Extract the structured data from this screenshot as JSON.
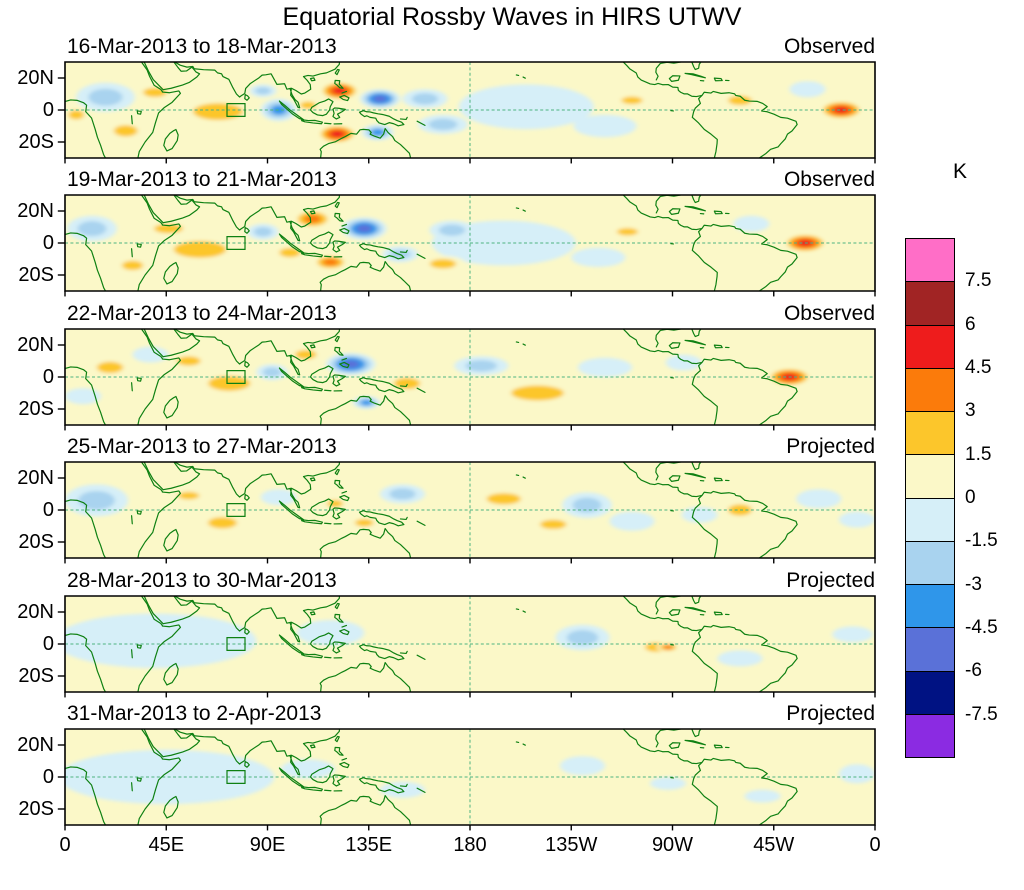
{
  "chart_data": {
    "type": "heatmap",
    "subtype": "filled_contour_longitude_latitude_maps",
    "title": "Equatorial Rossby Waves in HIRS UTWV",
    "contour_levels": [
      -7.5,
      -6,
      -4.5,
      -3,
      -1.5,
      0,
      1.5,
      3,
      4.5,
      6,
      7.5
    ],
    "x_tick_labels": [
      "0",
      "45E",
      "90E",
      "135E",
      "180",
      "135W",
      "90W",
      "45W",
      "0"
    ],
    "y_ticks": [
      {
        "label": "20N",
        "lat": 20
      },
      {
        "label": "0",
        "lat": 0
      },
      {
        "label": "20S",
        "lat": -20
      }
    ],
    "lon_range": [
      0,
      360
    ],
    "lat_range": [
      -30,
      30
    ],
    "colorbar": {
      "unit": "K",
      "tick_labels": [
        "7.5",
        "6",
        "4.5",
        "3",
        "1.5",
        "0",
        "-1.5",
        "-3",
        "-4.5",
        "-6",
        "-7.5"
      ],
      "colors_top_to_bottom": [
        "#FF6EC7",
        "#A12424",
        "#EE1C1C",
        "#FB7B0B",
        "#FCC62B",
        "#FBF8C8",
        "#D6EFF8",
        "#A9D3EF",
        "#2F96EA",
        "#5A71D8",
        "#001283",
        "#8B2BE2"
      ]
    },
    "target_box": {
      "lon_min": 72,
      "lon_max": 80,
      "lat_min": -4,
      "lat_max": 4
    },
    "style": {
      "base_fill": "#FBF8C8",
      "coast_color": "#0E8012",
      "grid_dash_color": "#4DB380",
      "frame_color": "#000000"
    },
    "anomaly_format": [
      "lon_deg_east",
      "lat_deg",
      "rx_deg",
      "ry_deg",
      "peak_K"
    ],
    "panels": [
      {
        "date_range": "16-Mar-2013 to 18-Mar-2013",
        "status": "Observed",
        "anomalies": [
          [
            18,
            8,
            13,
            9,
            -1.6
          ],
          [
            40,
            11,
            9,
            5,
            1.8
          ],
          [
            27,
            -13,
            9,
            6,
            1.8
          ],
          [
            5,
            -3,
            6,
            5,
            1.6
          ],
          [
            68,
            -1,
            19,
            9,
            2.3
          ],
          [
            95,
            0,
            8,
            7,
            -3.2
          ],
          [
            88,
            12,
            6,
            4,
            -1.6
          ],
          [
            122,
            12,
            9,
            6,
            5.2
          ],
          [
            140,
            7,
            9,
            6,
            -5.2
          ],
          [
            121,
            -15,
            9,
            6,
            4.7
          ],
          [
            139,
            -14,
            7,
            5,
            -3.1
          ],
          [
            108,
            3,
            6,
            4,
            1.8
          ],
          [
            160,
            7,
            10,
            6,
            -2.3
          ],
          [
            168,
            -9,
            11,
            6,
            -1.8
          ],
          [
            205,
            2,
            30,
            14,
            -1.2
          ],
          [
            252,
            6,
            8,
            4,
            1.7
          ],
          [
            240,
            -10,
            14,
            7,
            -1.3
          ],
          [
            300,
            6,
            9,
            5,
            1.6
          ],
          [
            330,
            13,
            8,
            5,
            -1.4
          ],
          [
            345,
            0,
            10,
            6,
            4.6
          ]
        ]
      },
      {
        "date_range": "19-Mar-2013 to 21-Mar-2013",
        "status": "Observed",
        "anomalies": [
          [
            12,
            9,
            11,
            8,
            -1.6
          ],
          [
            46,
            9,
            11,
            5,
            2.0
          ],
          [
            30,
            -14,
            8,
            5,
            1.7
          ],
          [
            60,
            -4,
            20,
            9,
            2.7
          ],
          [
            88,
            7,
            7,
            5,
            -2.4
          ],
          [
            110,
            15,
            9,
            6,
            3.7
          ],
          [
            133,
            9,
            10,
            7,
            -5.0
          ],
          [
            118,
            -12,
            8,
            5,
            4.3
          ],
          [
            100,
            -6,
            8,
            5,
            2.0
          ],
          [
            149,
            -7,
            8,
            5,
            -3.0
          ],
          [
            172,
            8,
            10,
            6,
            -2.0
          ],
          [
            168,
            -13,
            10,
            5,
            1.8
          ],
          [
            195,
            0,
            32,
            14,
            -1.3
          ],
          [
            250,
            7,
            8,
            4,
            1.6
          ],
          [
            237,
            -9,
            12,
            6,
            -1.4
          ],
          [
            305,
            12,
            8,
            5,
            -1.4
          ],
          [
            298,
            -8,
            8,
            5,
            1.5
          ],
          [
            329,
            0,
            10,
            6,
            4.9
          ]
        ]
      },
      {
        "date_range": "22-Mar-2013 to 24-Mar-2013",
        "status": "Observed",
        "anomalies": [
          [
            20,
            6,
            10,
            6,
            1.8
          ],
          [
            38,
            14,
            8,
            5,
            -1.4
          ],
          [
            8,
            -12,
            8,
            5,
            -1.3
          ],
          [
            55,
            10,
            9,
            5,
            1.9
          ],
          [
            73,
            -4,
            16,
            8,
            2.7
          ],
          [
            92,
            3,
            7,
            5,
            -2.1
          ],
          [
            107,
            14,
            8,
            5,
            2.1
          ],
          [
            127,
            8,
            11,
            7,
            -4.7
          ],
          [
            134,
            -16,
            6,
            4,
            -4.4
          ],
          [
            152,
            -4,
            10,
            6,
            2.0
          ],
          [
            185,
            7,
            12,
            6,
            -1.8
          ],
          [
            210,
            -10,
            20,
            8,
            2.0
          ],
          [
            240,
            6,
            12,
            6,
            -1.5
          ],
          [
            275,
            9,
            8,
            5,
            -1.3
          ],
          [
            300,
            -6,
            8,
            4,
            1.5
          ],
          [
            322,
            0,
            10,
            6,
            4.7
          ]
        ]
      },
      {
        "date_range": "25-Mar-2013 to 27-Mar-2013",
        "status": "Projected",
        "anomalies": [
          [
            14,
            6,
            14,
            10,
            -1.6
          ],
          [
            55,
            9,
            8,
            4,
            1.6
          ],
          [
            70,
            -8,
            11,
            6,
            2.2
          ],
          [
            95,
            8,
            8,
            5,
            -1.4
          ],
          [
            120,
            4,
            6,
            4,
            1.6
          ],
          [
            133,
            -8,
            7,
            4,
            1.8
          ],
          [
            150,
            10,
            10,
            6,
            -1.6
          ],
          [
            195,
            7,
            13,
            6,
            2.2
          ],
          [
            217,
            -9,
            10,
            5,
            1.6
          ],
          [
            232,
            3,
            11,
            8,
            -2.6
          ],
          [
            252,
            -7,
            10,
            6,
            -1.5
          ],
          [
            282,
            -3,
            8,
            5,
            -1.3
          ],
          [
            300,
            0,
            9,
            6,
            2.6
          ],
          [
            335,
            7,
            10,
            6,
            -1.5
          ],
          [
            352,
            -6,
            8,
            5,
            -1.3
          ]
        ]
      },
      {
        "date_range": "28-Mar-2013 to 30-Mar-2013",
        "status": "Projected",
        "anomalies": [
          [
            40,
            2,
            45,
            17,
            -1.3
          ],
          [
            118,
            7,
            15,
            8,
            -1.3
          ],
          [
            230,
            4,
            12,
            8,
            -1.9
          ],
          [
            263,
            -2,
            9,
            5,
            1.6
          ],
          [
            268,
            -2,
            5,
            3,
            3.8
          ],
          [
            300,
            -9,
            10,
            5,
            -1.2
          ],
          [
            350,
            6,
            9,
            5,
            -1.2
          ]
        ]
      },
      {
        "date_range": "31-Mar-2013 to 2-Apr-2013",
        "status": "Projected",
        "anomalies": [
          [
            45,
            0,
            48,
            17,
            -1.2
          ],
          [
            108,
            5,
            12,
            6,
            -1.2
          ],
          [
            150,
            -8,
            10,
            5,
            -1.1
          ],
          [
            230,
            7,
            10,
            6,
            -1.2
          ],
          [
            268,
            -4,
            8,
            4,
            -1.1
          ],
          [
            310,
            -12,
            8,
            4,
            -1.1
          ],
          [
            352,
            2,
            8,
            6,
            -1.2
          ]
        ]
      }
    ]
  }
}
